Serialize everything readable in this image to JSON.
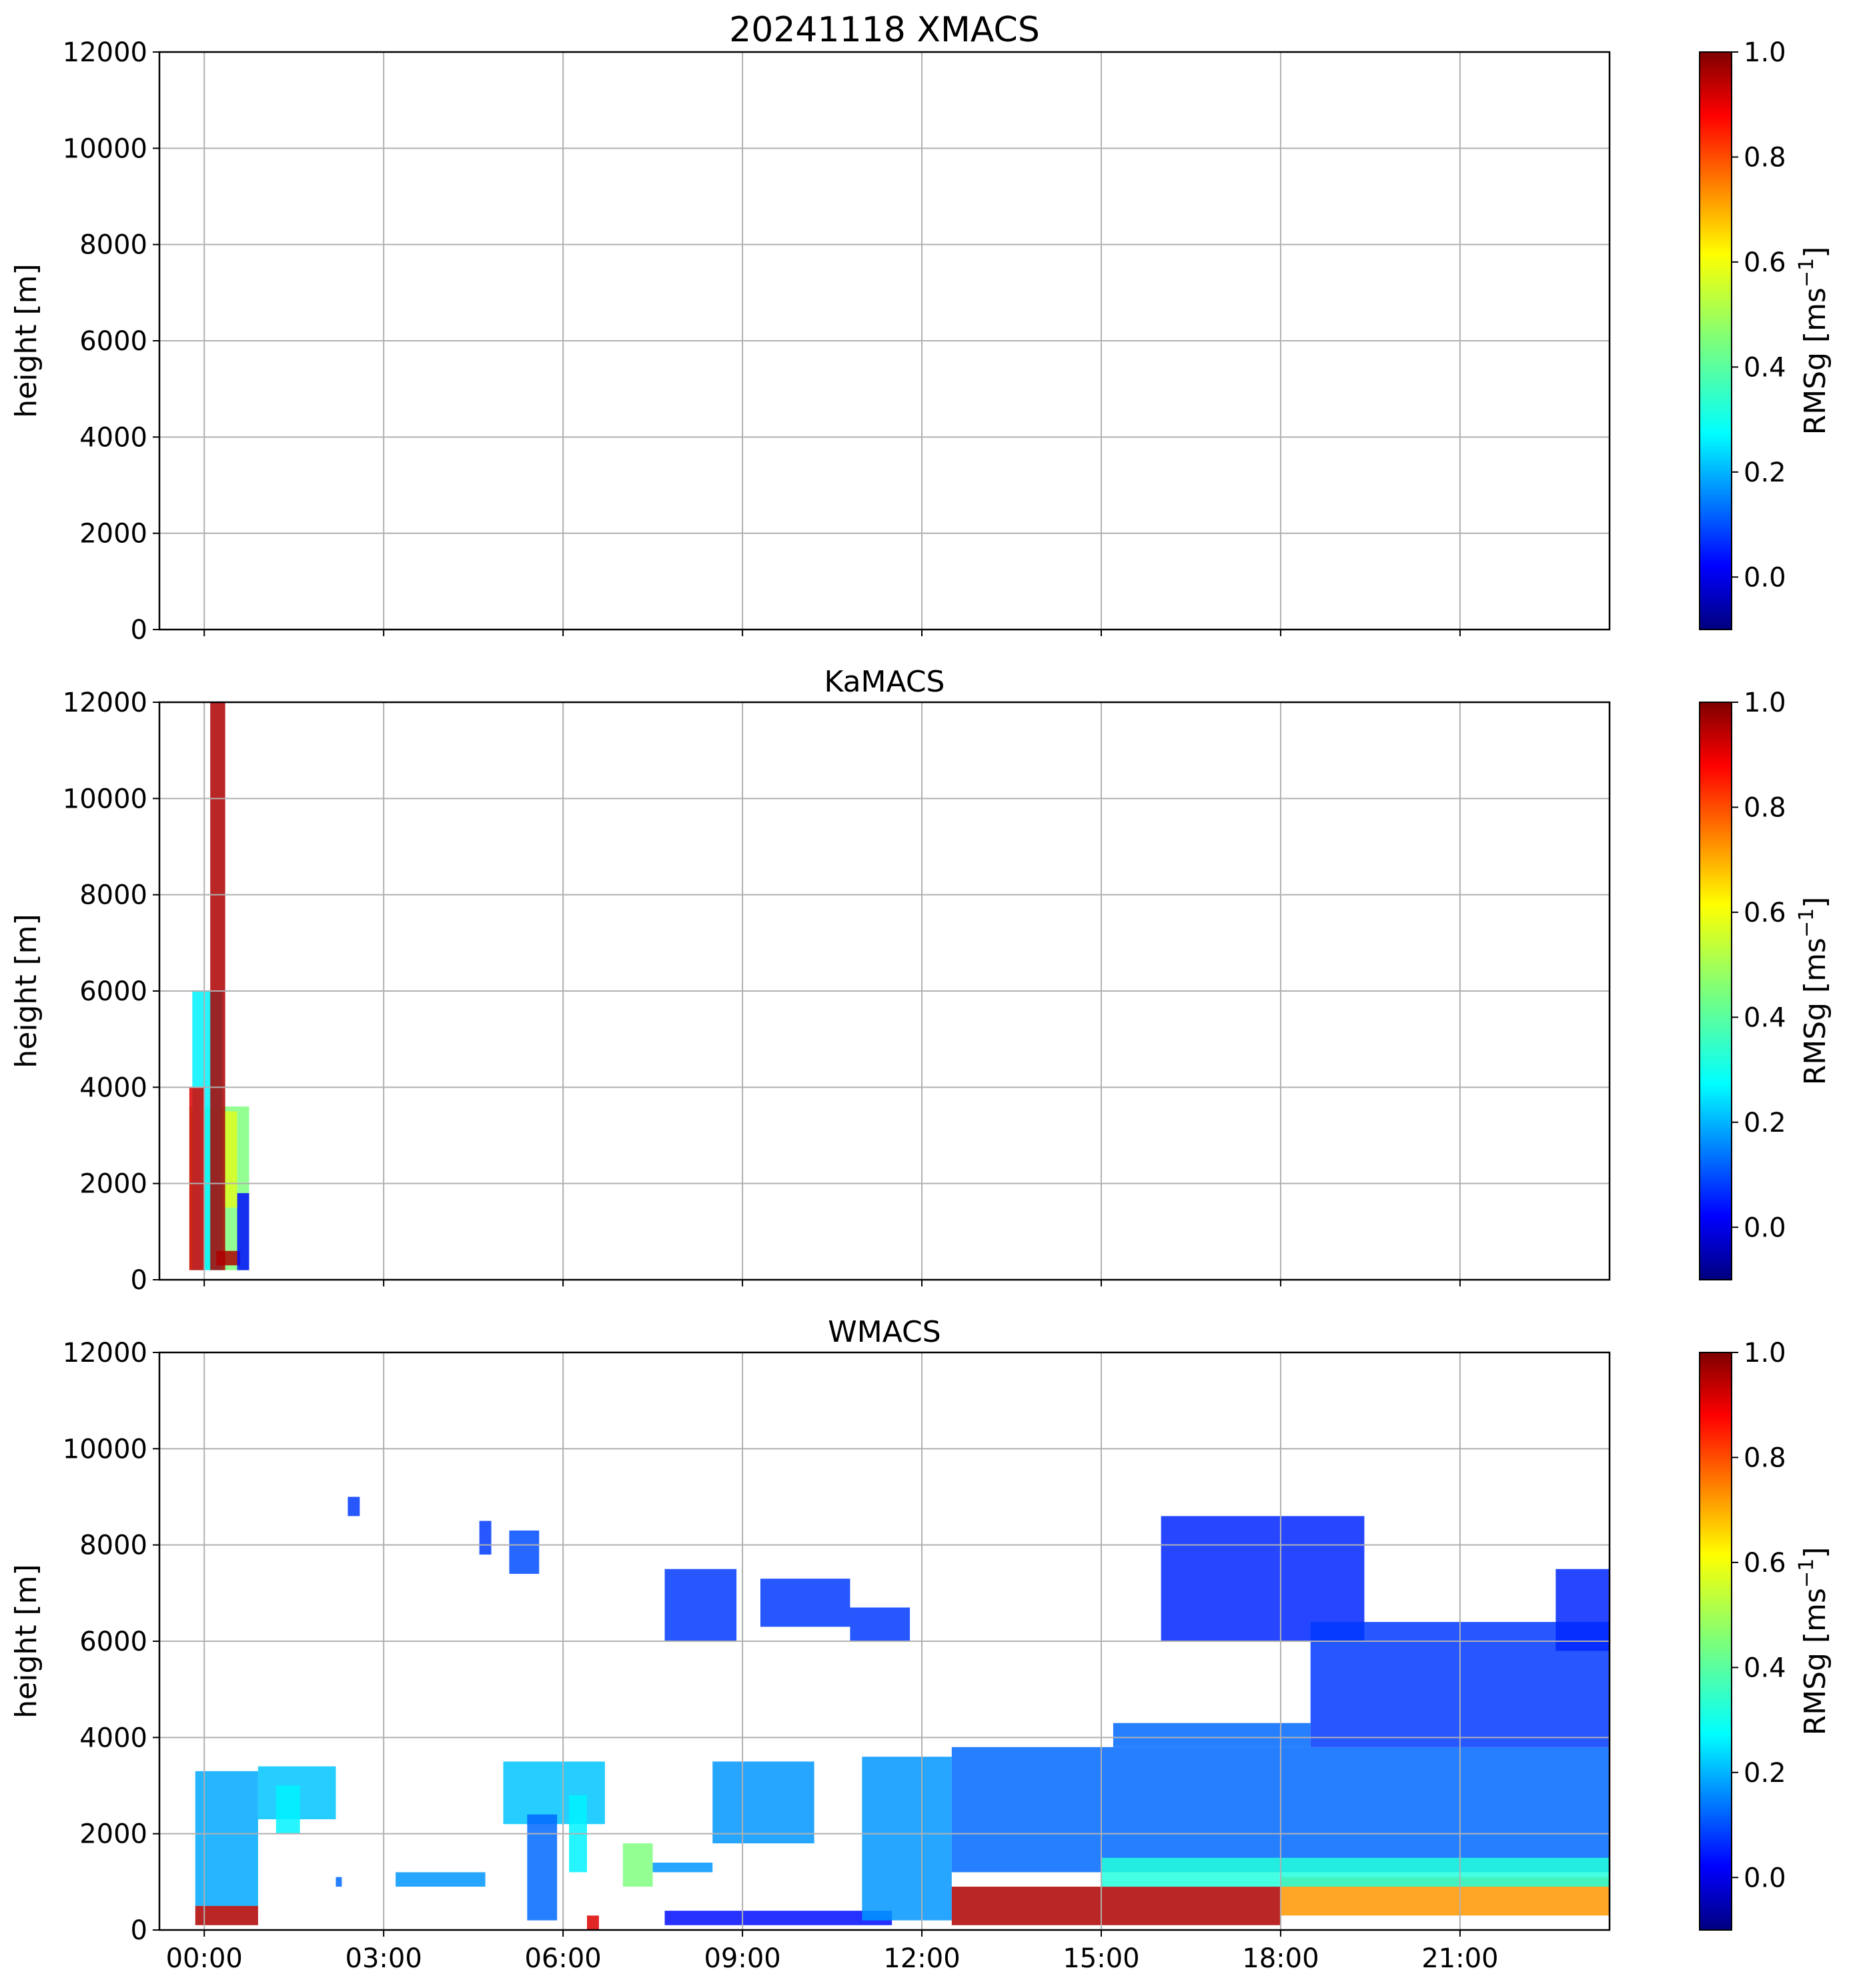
{
  "chart_data": [
    {
      "type": "heatmap",
      "title": "20241118 XMACS",
      "ylabel": "height [m]",
      "xlabel": "",
      "xlim": [
        "23:45",
        "23:45+1d"
      ],
      "ylim": [
        0,
        12000
      ],
      "yticks": [
        "0",
        "2000",
        "4000",
        "6000",
        "8000",
        "10000",
        "12000"
      ],
      "xticks": [],
      "grid": true,
      "colorbar": {
        "label": "RMSg [ms",
        "label_sup": "−1",
        "label_end": "]",
        "ticks": [
          "0.0",
          "0.2",
          "0.4",
          "0.6",
          "0.8",
          "1.0"
        ],
        "range": [
          -0.1,
          1.0
        ],
        "colormap": "jet"
      },
      "regions": []
    },
    {
      "type": "heatmap",
      "title": "KaMACS",
      "ylabel": "height [m]",
      "xlabel": "",
      "ylim": [
        0,
        12000
      ],
      "yticks": [
        "0",
        "2000",
        "4000",
        "6000",
        "8000",
        "10000",
        "12000"
      ],
      "xticks": [],
      "grid": true,
      "colorbar": {
        "label": "RMSg [ms",
        "label_sup": "−1",
        "label_end": "]",
        "ticks": [
          "0.0",
          "0.2",
          "0.4",
          "0.6",
          "0.8",
          "1.0"
        ],
        "range": [
          -0.1,
          1.0
        ],
        "colormap": "jet"
      },
      "regions": [
        {
          "t0": -0.25,
          "t1": 0.75,
          "h0": 200,
          "h1": 3600,
          "value": 0.45
        },
        {
          "t0": -0.2,
          "t1": 0.3,
          "h0": 200,
          "h1": 6000,
          "value": 0.3
        },
        {
          "t0": 0.1,
          "t1": 0.35,
          "h0": 200,
          "h1": 12000,
          "value": 0.95
        },
        {
          "t0": -0.25,
          "t1": 0.0,
          "h0": 200,
          "h1": 4000,
          "value": 0.9
        },
        {
          "t0": 0.2,
          "t1": 0.6,
          "h0": 300,
          "h1": 600,
          "value": 0.95
        },
        {
          "t0": 0.55,
          "t1": 0.75,
          "h0": 200,
          "h1": 1800,
          "value": 0.05
        },
        {
          "t0": 0.35,
          "t1": 0.55,
          "h0": 1500,
          "h1": 3500,
          "value": 0.55
        }
      ]
    },
    {
      "type": "heatmap",
      "title": "WMACS",
      "ylabel": "height [m]",
      "xlabel": "",
      "ylim": [
        0,
        12000
      ],
      "yticks": [
        "0",
        "2000",
        "4000",
        "6000",
        "8000",
        "10000",
        "12000"
      ],
      "xticks": [
        "00:00",
        "03:00",
        "06:00",
        "09:00",
        "12:00",
        "15:00",
        "18:00",
        "21:00"
      ],
      "grid": true,
      "colorbar": {
        "label": "RMSg [ms",
        "label_sup": "−1",
        "label_end": "]",
        "ticks": [
          "0.0",
          "0.2",
          "0.4",
          "0.6",
          "0.8",
          "1.0"
        ],
        "range": [
          -0.1,
          1.0
        ],
        "colormap": "jet"
      },
      "regions": [
        {
          "t0": -0.15,
          "t1": 0.9,
          "h0": 500,
          "h1": 3300,
          "value": 0.22
        },
        {
          "t0": -0.15,
          "t1": 0.9,
          "h0": 100,
          "h1": 500,
          "value": 0.95
        },
        {
          "t0": 0.9,
          "t1": 2.2,
          "h0": 2300,
          "h1": 3400,
          "value": 0.25
        },
        {
          "t0": 1.2,
          "t1": 1.6,
          "h0": 2000,
          "h1": 3000,
          "value": 0.3
        },
        {
          "t0": 2.4,
          "t1": 2.6,
          "h0": 8600,
          "h1": 9000,
          "value": 0.1
        },
        {
          "t0": 2.2,
          "t1": 2.3,
          "h0": 900,
          "h1": 1100,
          "value": 0.15
        },
        {
          "t0": 3.2,
          "t1": 4.7,
          "h0": 900,
          "h1": 1200,
          "value": 0.2
        },
        {
          "t0": 4.6,
          "t1": 4.8,
          "h0": 7800,
          "h1": 8500,
          "value": 0.1
        },
        {
          "t0": 5.1,
          "t1": 5.6,
          "h0": 7400,
          "h1": 8300,
          "value": 0.12
        },
        {
          "t0": 5.0,
          "t1": 6.7,
          "h0": 2200,
          "h1": 3500,
          "value": 0.25
        },
        {
          "t0": 5.4,
          "t1": 5.9,
          "h0": 200,
          "h1": 2400,
          "value": 0.15
        },
        {
          "t0": 6.1,
          "t1": 6.4,
          "h0": 1200,
          "h1": 2800,
          "value": 0.3
        },
        {
          "t0": 6.4,
          "t1": 6.6,
          "h0": 0,
          "h1": 300,
          "value": 0.9
        },
        {
          "t0": 7.0,
          "t1": 7.5,
          "h0": 900,
          "h1": 1800,
          "value": 0.45
        },
        {
          "t0": 7.5,
          "t1": 8.5,
          "h0": 1200,
          "h1": 1400,
          "value": 0.2
        },
        {
          "t0": 7.7,
          "t1": 8.9,
          "h0": 6000,
          "h1": 7500,
          "value": 0.1
        },
        {
          "t0": 8.5,
          "t1": 10.2,
          "h0": 1800,
          "h1": 3500,
          "value": 0.2
        },
        {
          "t0": 9.3,
          "t1": 10.8,
          "h0": 6300,
          "h1": 7300,
          "value": 0.1
        },
        {
          "t0": 7.7,
          "t1": 11.5,
          "h0": 100,
          "h1": 400,
          "value": 0.05
        },
        {
          "t0": 10.8,
          "t1": 11.8,
          "h0": 6000,
          "h1": 6700,
          "value": 0.1
        },
        {
          "t0": 11.0,
          "t1": 12.5,
          "h0": 200,
          "h1": 3600,
          "value": 0.2
        },
        {
          "t0": 12.5,
          "t1": 23.5,
          "h0": 1200,
          "h1": 3800,
          "value": 0.15
        },
        {
          "t0": 12.5,
          "t1": 18.0,
          "h0": 100,
          "h1": 900,
          "value": 0.95
        },
        {
          "t0": 18.0,
          "t1": 23.5,
          "h0": 300,
          "h1": 1100,
          "value": 0.7
        },
        {
          "t0": 15.2,
          "t1": 18.5,
          "h0": 3800,
          "h1": 4300,
          "value": 0.15
        },
        {
          "t0": 16.0,
          "t1": 19.4,
          "h0": 6000,
          "h1": 8600,
          "value": 0.08
        },
        {
          "t0": 18.5,
          "t1": 23.5,
          "h0": 3800,
          "h1": 6400,
          "value": 0.1
        },
        {
          "t0": 22.6,
          "t1": 23.5,
          "h0": 5800,
          "h1": 7500,
          "value": 0.08
        },
        {
          "t0": 15.0,
          "t1": 23.5,
          "h0": 900,
          "h1": 1500,
          "value": 0.35
        }
      ]
    }
  ]
}
